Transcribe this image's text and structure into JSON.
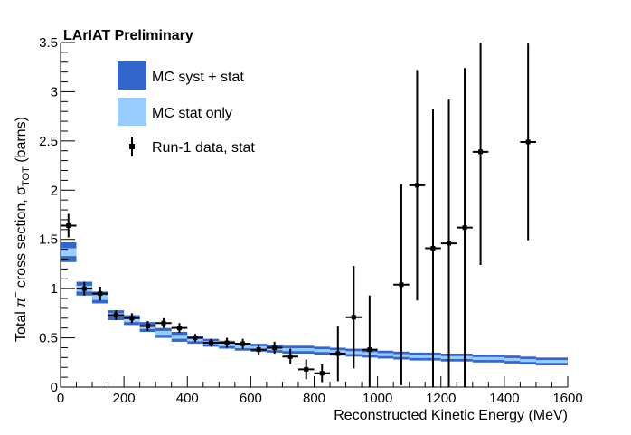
{
  "chart_data": {
    "type": "scatter",
    "title": "LArIAT Preliminary",
    "xlabel": "Reconstructed Kinetic Energy (MeV)",
    "ylabel": "Total π⁻ cross section, σ_TOT (barns)",
    "ylabel_parts": {
      "pre": "Total ",
      "pi": "π",
      "sup": "−",
      "mid": " cross section, σ",
      "sub": "TOT",
      "post": " (barns)"
    },
    "xlim": [
      0,
      1600
    ],
    "ylim": [
      0,
      3.5
    ],
    "x_ticks": [
      0,
      200,
      400,
      600,
      800,
      1000,
      1200,
      1400,
      1600
    ],
    "x_tick_labels": [
      "0",
      "200",
      "400",
      "600",
      "800",
      "1000",
      "1200",
      "1400",
      "1600"
    ],
    "y_ticks": [
      0,
      0.5,
      1,
      1.5,
      2,
      2.5,
      3,
      3.5
    ],
    "y_tick_labels": [
      "0",
      "0.5",
      "1",
      "1.5",
      "2",
      "2.5",
      "3",
      "3.5"
    ],
    "grid": false,
    "legend_position": "top-left",
    "legend": [
      {
        "label": "MC syst + stat",
        "kind": "box",
        "color": "#3366cc"
      },
      {
        "label": "MC stat only",
        "kind": "box",
        "color": "#99ccff"
      },
      {
        "label": "Run-1 data, stat",
        "kind": "marker",
        "color": "#000000"
      }
    ],
    "colors": {
      "mc_syst": "#3366cc",
      "mc_stat": "#99ccff",
      "data": "#000000"
    },
    "series": [
      {
        "name": "MC syst + stat",
        "kind": "band",
        "bin_width": 50,
        "x_low": [
          0,
          50,
          100,
          150,
          200,
          250,
          300,
          350,
          400,
          450,
          500,
          550,
          600,
          650,
          700,
          750,
          800,
          850,
          900,
          950,
          1000,
          1050,
          1100,
          1150,
          1200,
          1250,
          1300,
          1350,
          1400,
          1450,
          1500,
          1550
        ],
        "y_center": [
          1.37,
          1.0,
          0.91,
          0.73,
          0.68,
          0.61,
          0.55,
          0.51,
          0.48,
          0.45,
          0.43,
          0.41,
          0.4,
          0.39,
          0.38,
          0.38,
          0.37,
          0.36,
          0.35,
          0.34,
          0.33,
          0.32,
          0.31,
          0.31,
          0.3,
          0.3,
          0.29,
          0.29,
          0.28,
          0.27,
          0.26,
          0.26
        ],
        "half_width_syst": [
          0.1,
          0.07,
          0.06,
          0.05,
          0.05,
          0.05,
          0.05,
          0.05,
          0.04,
          0.04,
          0.04,
          0.04,
          0.04,
          0.04,
          0.04,
          0.04,
          0.04,
          0.04,
          0.04,
          0.04,
          0.04,
          0.04,
          0.04,
          0.04,
          0.04,
          0.04,
          0.04,
          0.04,
          0.04,
          0.04,
          0.04,
          0.04
        ],
        "half_width_stat": [
          0.04,
          0.03,
          0.025,
          0.02,
          0.02,
          0.02,
          0.02,
          0.02,
          0.015,
          0.015,
          0.015,
          0.015,
          0.015,
          0.015,
          0.015,
          0.015,
          0.015,
          0.015,
          0.015,
          0.015,
          0.015,
          0.015,
          0.015,
          0.015,
          0.015,
          0.015,
          0.015,
          0.015,
          0.015,
          0.015,
          0.015,
          0.015
        ]
      },
      {
        "name": "Run-1 data, stat",
        "kind": "points",
        "x": [
          25,
          75,
          125,
          175,
          225,
          275,
          325,
          375,
          425,
          475,
          525,
          575,
          625,
          675,
          725,
          775,
          825,
          875,
          925,
          975,
          1075,
          1125,
          1175,
          1225,
          1275,
          1325,
          1475
        ],
        "y": [
          1.64,
          1.0,
          0.95,
          0.73,
          0.7,
          0.62,
          0.65,
          0.6,
          0.5,
          0.45,
          0.45,
          0.44,
          0.38,
          0.4,
          0.31,
          0.18,
          0.14,
          0.34,
          0.71,
          0.38,
          1.04,
          2.05,
          1.41,
          1.46,
          1.62,
          2.39,
          2.49
        ],
        "y_err": [
          0.12,
          0.07,
          0.07,
          0.05,
          0.05,
          0.05,
          0.05,
          0.05,
          0.04,
          0.04,
          0.05,
          0.05,
          0.05,
          0.06,
          0.08,
          0.1,
          0.09,
          0.28,
          0.52,
          0.55,
          1.02,
          1.17,
          1.41,
          1.46,
          1.62,
          1.15,
          1.0
        ],
        "x_err": 25
      }
    ]
  }
}
